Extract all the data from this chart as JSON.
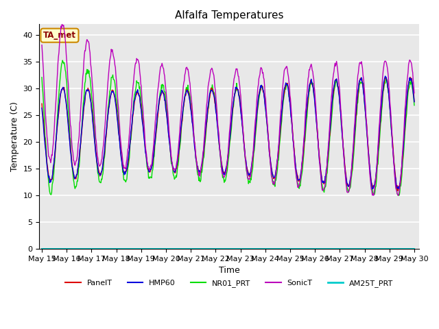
{
  "title": "Alfalfa Temperatures",
  "xlabel": "Time",
  "ylabel": "Temperature (C)",
  "annotation": "TA_met",
  "ylim": [
    0,
    42
  ],
  "yticks": [
    0,
    5,
    10,
    15,
    20,
    25,
    30,
    35,
    40
  ],
  "date_start": 15,
  "date_end": 30,
  "plot_bg": "#e8e8e8",
  "fig_bg": "#ffffff",
  "grid_color": "#ffffff",
  "series": {
    "PanelT": {
      "color": "#dd0000",
      "lw": 1.0
    },
    "HMP60": {
      "color": "#0000dd",
      "lw": 1.0
    },
    "NR01_PRT": {
      "color": "#00dd00",
      "lw": 1.0
    },
    "SonicT": {
      "color": "#bb00bb",
      "lw": 1.0
    },
    "AM25T_PRT": {
      "color": "#00cccc",
      "lw": 1.5
    }
  },
  "n_days": 15,
  "pts_per_day": 48
}
